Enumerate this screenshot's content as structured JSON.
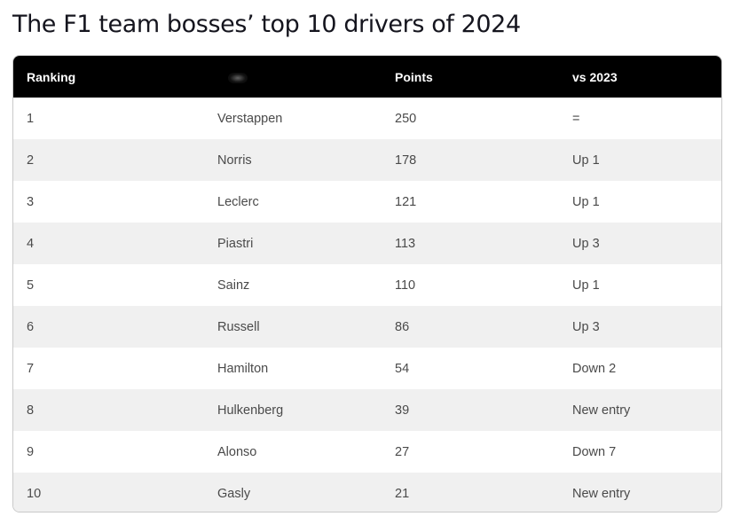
{
  "title": "The F1 team bosses’ top 10 drivers of 2024",
  "table": {
    "headers": [
      "Ranking",
      "",
      "Points",
      "vs 2023"
    ],
    "rows": [
      {
        "rank": "1",
        "driver": "Verstappen",
        "points": "250",
        "vs2023": "="
      },
      {
        "rank": "2",
        "driver": "Norris",
        "points": "178",
        "vs2023": "Up 1"
      },
      {
        "rank": "3",
        "driver": "Leclerc",
        "points": "121",
        "vs2023": "Up 1"
      },
      {
        "rank": "4",
        "driver": "Piastri",
        "points": "113",
        "vs2023": "Up 3"
      },
      {
        "rank": "5",
        "driver": "Sainz",
        "points": "110",
        "vs2023": "Up 1"
      },
      {
        "rank": "6",
        "driver": "Russell",
        "points": "86",
        "vs2023": "Up 3"
      },
      {
        "rank": "7",
        "driver": "Hamilton",
        "points": "54",
        "vs2023": "Down 2"
      },
      {
        "rank": "8",
        "driver": "Hulkenberg",
        "points": "39",
        "vs2023": "New entry"
      },
      {
        "rank": "9",
        "driver": "Alonso",
        "points": "27",
        "vs2023": "Down 7"
      },
      {
        "rank": "10",
        "driver": "Gasly",
        "points": "21",
        "vs2023": "New entry"
      }
    ]
  },
  "colors": {
    "header_background": "#000000",
    "header_text": "#ffffff",
    "row_alt_background": "#f0f0f0",
    "title_text": "#15151e"
  }
}
